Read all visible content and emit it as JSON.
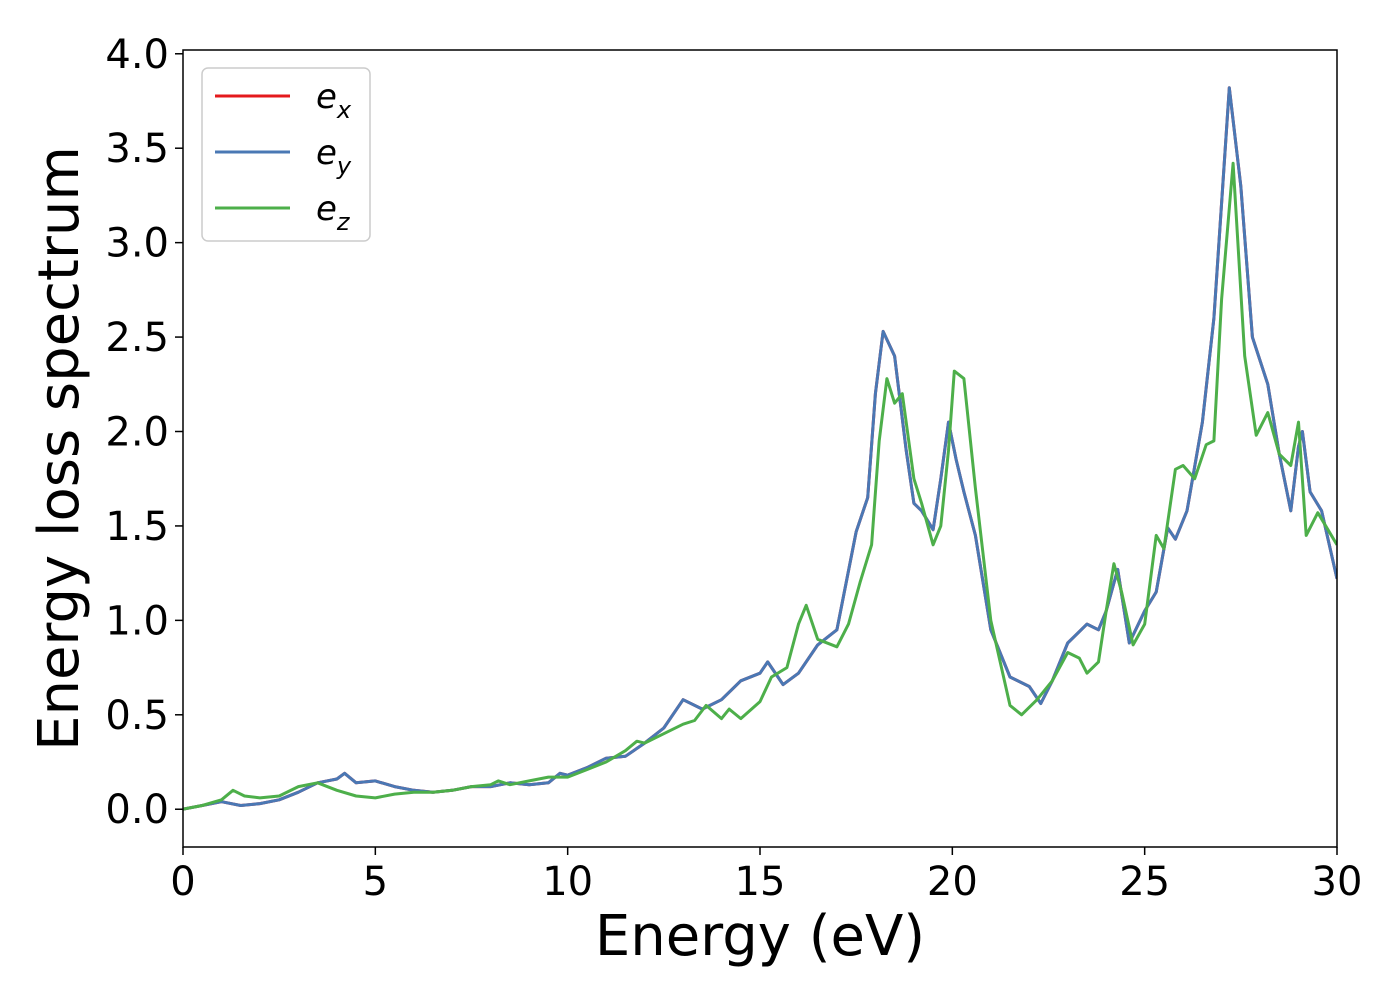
{
  "chart_data": {
    "type": "line",
    "xlabel": "Energy (eV)",
    "ylabel": "Energy loss spectrum",
    "xlim": [
      0,
      30
    ],
    "ylim": [
      -0.2,
      4.02
    ],
    "xticks": [
      "0",
      "5",
      "10",
      "15",
      "20",
      "25",
      "30"
    ],
    "yticks": [
      "0.0",
      "0.5",
      "1.0",
      "1.5",
      "2.0",
      "2.5",
      "3.0",
      "3.5",
      "4.0"
    ],
    "grid": false,
    "legend_position": "top-left",
    "series": [
      {
        "name": "e",
        "subscript": "x",
        "color": "#e41a1c",
        "points": [
          [
            0,
            0
          ],
          [
            0.5,
            0.02
          ],
          [
            1,
            0.04
          ],
          [
            1.5,
            0.02
          ],
          [
            2,
            0.03
          ],
          [
            2.5,
            0.05
          ],
          [
            3,
            0.09
          ],
          [
            3.5,
            0.14
          ],
          [
            4,
            0.16
          ],
          [
            4.2,
            0.19
          ],
          [
            4.5,
            0.14
          ],
          [
            5,
            0.15
          ],
          [
            5.5,
            0.12
          ],
          [
            6,
            0.1
          ],
          [
            6.5,
            0.09
          ],
          [
            7,
            0.1
          ],
          [
            7.5,
            0.12
          ],
          [
            8,
            0.12
          ],
          [
            8.5,
            0.14
          ],
          [
            9,
            0.13
          ],
          [
            9.5,
            0.14
          ],
          [
            9.8,
            0.19
          ],
          [
            10,
            0.18
          ],
          [
            10.5,
            0.22
          ],
          [
            11,
            0.27
          ],
          [
            11.5,
            0.28
          ],
          [
            12,
            0.35
          ],
          [
            12.5,
            0.43
          ],
          [
            13,
            0.58
          ],
          [
            13.5,
            0.53
          ],
          [
            14,
            0.58
          ],
          [
            14.5,
            0.68
          ],
          [
            15,
            0.72
          ],
          [
            15.2,
            0.78
          ],
          [
            15.6,
            0.66
          ],
          [
            16,
            0.72
          ],
          [
            16.5,
            0.87
          ],
          [
            17,
            0.95
          ],
          [
            17.5,
            1.47
          ],
          [
            17.8,
            1.65
          ],
          [
            18,
            2.2
          ],
          [
            18.2,
            2.53
          ],
          [
            18.5,
            2.4
          ],
          [
            18.8,
            1.9
          ],
          [
            19,
            1.62
          ],
          [
            19.2,
            1.58
          ],
          [
            19.5,
            1.48
          ],
          [
            19.7,
            1.75
          ],
          [
            19.9,
            2.05
          ],
          [
            20.1,
            1.85
          ],
          [
            20.3,
            1.68
          ],
          [
            20.6,
            1.45
          ],
          [
            21,
            0.95
          ],
          [
            21.5,
            0.7
          ],
          [
            22,
            0.65
          ],
          [
            22.3,
            0.56
          ],
          [
            22.6,
            0.68
          ],
          [
            23,
            0.88
          ],
          [
            23.5,
            0.98
          ],
          [
            23.8,
            0.95
          ],
          [
            24,
            1.05
          ],
          [
            24.3,
            1.27
          ],
          [
            24.6,
            0.88
          ],
          [
            25,
            1.05
          ],
          [
            25.3,
            1.15
          ],
          [
            25.6,
            1.49
          ],
          [
            25.8,
            1.43
          ],
          [
            26.1,
            1.58
          ],
          [
            26.5,
            2.05
          ],
          [
            26.8,
            2.6
          ],
          [
            27.2,
            3.82
          ],
          [
            27.5,
            3.3
          ],
          [
            27.8,
            2.5
          ],
          [
            28.2,
            2.25
          ],
          [
            28.5,
            1.88
          ],
          [
            28.8,
            1.58
          ],
          [
            29,
            1.92
          ],
          [
            29.1,
            2.0
          ],
          [
            29.3,
            1.68
          ],
          [
            29.6,
            1.58
          ],
          [
            30,
            1.22
          ]
        ]
      },
      {
        "name": "e",
        "subscript": "y",
        "color": "#4a78b4",
        "points": [
          [
            0,
            0
          ],
          [
            0.5,
            0.02
          ],
          [
            1,
            0.04
          ],
          [
            1.5,
            0.02
          ],
          [
            2,
            0.03
          ],
          [
            2.5,
            0.05
          ],
          [
            3,
            0.09
          ],
          [
            3.5,
            0.14
          ],
          [
            4,
            0.16
          ],
          [
            4.2,
            0.19
          ],
          [
            4.5,
            0.14
          ],
          [
            5,
            0.15
          ],
          [
            5.5,
            0.12
          ],
          [
            6,
            0.1
          ],
          [
            6.5,
            0.09
          ],
          [
            7,
            0.1
          ],
          [
            7.5,
            0.12
          ],
          [
            8,
            0.12
          ],
          [
            8.5,
            0.14
          ],
          [
            9,
            0.13
          ],
          [
            9.5,
            0.14
          ],
          [
            9.8,
            0.19
          ],
          [
            10,
            0.18
          ],
          [
            10.5,
            0.22
          ],
          [
            11,
            0.27
          ],
          [
            11.5,
            0.28
          ],
          [
            12,
            0.35
          ],
          [
            12.5,
            0.43
          ],
          [
            13,
            0.58
          ],
          [
            13.5,
            0.53
          ],
          [
            14,
            0.58
          ],
          [
            14.5,
            0.68
          ],
          [
            15,
            0.72
          ],
          [
            15.2,
            0.78
          ],
          [
            15.6,
            0.66
          ],
          [
            16,
            0.72
          ],
          [
            16.5,
            0.87
          ],
          [
            17,
            0.95
          ],
          [
            17.5,
            1.47
          ],
          [
            17.8,
            1.65
          ],
          [
            18,
            2.2
          ],
          [
            18.2,
            2.53
          ],
          [
            18.5,
            2.4
          ],
          [
            18.8,
            1.9
          ],
          [
            19,
            1.62
          ],
          [
            19.2,
            1.58
          ],
          [
            19.5,
            1.48
          ],
          [
            19.7,
            1.75
          ],
          [
            19.9,
            2.05
          ],
          [
            20.1,
            1.85
          ],
          [
            20.3,
            1.68
          ],
          [
            20.6,
            1.45
          ],
          [
            21,
            0.95
          ],
          [
            21.5,
            0.7
          ],
          [
            22,
            0.65
          ],
          [
            22.3,
            0.56
          ],
          [
            22.6,
            0.68
          ],
          [
            23,
            0.88
          ],
          [
            23.5,
            0.98
          ],
          [
            23.8,
            0.95
          ],
          [
            24,
            1.05
          ],
          [
            24.3,
            1.27
          ],
          [
            24.6,
            0.88
          ],
          [
            25,
            1.05
          ],
          [
            25.3,
            1.15
          ],
          [
            25.6,
            1.49
          ],
          [
            25.8,
            1.43
          ],
          [
            26.1,
            1.58
          ],
          [
            26.5,
            2.05
          ],
          [
            26.8,
            2.6
          ],
          [
            27.2,
            3.82
          ],
          [
            27.5,
            3.3
          ],
          [
            27.8,
            2.5
          ],
          [
            28.2,
            2.25
          ],
          [
            28.5,
            1.88
          ],
          [
            28.8,
            1.58
          ],
          [
            29,
            1.92
          ],
          [
            29.1,
            2.0
          ],
          [
            29.3,
            1.68
          ],
          [
            29.6,
            1.58
          ],
          [
            30,
            1.22
          ]
        ]
      },
      {
        "name": "e",
        "subscript": "z",
        "color": "#4daf4a",
        "points": [
          [
            0,
            0
          ],
          [
            0.5,
            0.02
          ],
          [
            1,
            0.05
          ],
          [
            1.3,
            0.1
          ],
          [
            1.6,
            0.07
          ],
          [
            2,
            0.06
          ],
          [
            2.5,
            0.07
          ],
          [
            3,
            0.12
          ],
          [
            3.5,
            0.14
          ],
          [
            4,
            0.1
          ],
          [
            4.5,
            0.07
          ],
          [
            5,
            0.06
          ],
          [
            5.5,
            0.08
          ],
          [
            6,
            0.09
          ],
          [
            6.5,
            0.09
          ],
          [
            7,
            0.1
          ],
          [
            7.5,
            0.12
          ],
          [
            8,
            0.13
          ],
          [
            8.2,
            0.15
          ],
          [
            8.5,
            0.13
          ],
          [
            9,
            0.15
          ],
          [
            9.5,
            0.17
          ],
          [
            10,
            0.17
          ],
          [
            10.5,
            0.21
          ],
          [
            11,
            0.25
          ],
          [
            11.5,
            0.31
          ],
          [
            11.8,
            0.36
          ],
          [
            12,
            0.35
          ],
          [
            12.5,
            0.4
          ],
          [
            13,
            0.45
          ],
          [
            13.3,
            0.47
          ],
          [
            13.6,
            0.55
          ],
          [
            14,
            0.48
          ],
          [
            14.2,
            0.53
          ],
          [
            14.5,
            0.48
          ],
          [
            15,
            0.57
          ],
          [
            15.3,
            0.7
          ],
          [
            15.7,
            0.75
          ],
          [
            16,
            0.98
          ],
          [
            16.2,
            1.08
          ],
          [
            16.5,
            0.9
          ],
          [
            17,
            0.86
          ],
          [
            17.3,
            0.98
          ],
          [
            17.6,
            1.2
          ],
          [
            17.9,
            1.4
          ],
          [
            18.1,
            1.95
          ],
          [
            18.3,
            2.28
          ],
          [
            18.5,
            2.15
          ],
          [
            18.7,
            2.2
          ],
          [
            19,
            1.75
          ],
          [
            19.2,
            1.62
          ],
          [
            19.5,
            1.4
          ],
          [
            19.7,
            1.5
          ],
          [
            19.9,
            1.9
          ],
          [
            20.05,
            2.32
          ],
          [
            20.3,
            2.28
          ],
          [
            20.6,
            1.7
          ],
          [
            21,
            1.0
          ],
          [
            21.5,
            0.55
          ],
          [
            21.8,
            0.5
          ],
          [
            22.2,
            0.58
          ],
          [
            22.6,
            0.68
          ],
          [
            23,
            0.83
          ],
          [
            23.3,
            0.8
          ],
          [
            23.5,
            0.72
          ],
          [
            23.8,
            0.78
          ],
          [
            24,
            1.05
          ],
          [
            24.2,
            1.3
          ],
          [
            24.4,
            1.15
          ],
          [
            24.7,
            0.87
          ],
          [
            25,
            0.98
          ],
          [
            25.3,
            1.45
          ],
          [
            25.5,
            1.38
          ],
          [
            25.8,
            1.8
          ],
          [
            26,
            1.82
          ],
          [
            26.3,
            1.75
          ],
          [
            26.6,
            1.93
          ],
          [
            26.8,
            1.95
          ],
          [
            27.0,
            2.7
          ],
          [
            27.3,
            3.42
          ],
          [
            27.6,
            2.4
          ],
          [
            27.9,
            1.98
          ],
          [
            28.2,
            2.1
          ],
          [
            28.5,
            1.88
          ],
          [
            28.8,
            1.82
          ],
          [
            29.0,
            2.05
          ],
          [
            29.2,
            1.45
          ],
          [
            29.5,
            1.57
          ],
          [
            30,
            1.4
          ]
        ]
      }
    ]
  }
}
